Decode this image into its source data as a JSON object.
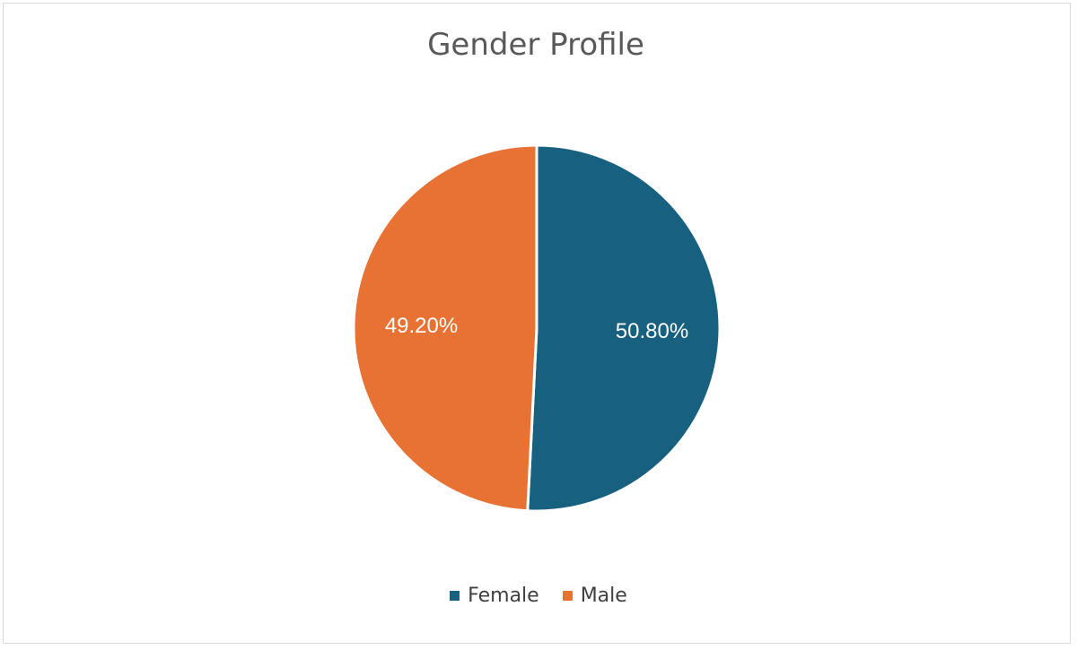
{
  "chart_data": {
    "type": "pie",
    "title": "Gender Profile",
    "categories": [
      "Female",
      "Male"
    ],
    "values": [
      50.8,
      49.2
    ],
    "labels": [
      "50.80%",
      "49.20%"
    ],
    "colors": [
      "#17607f",
      "#e87233"
    ],
    "legend_position": "bottom"
  }
}
